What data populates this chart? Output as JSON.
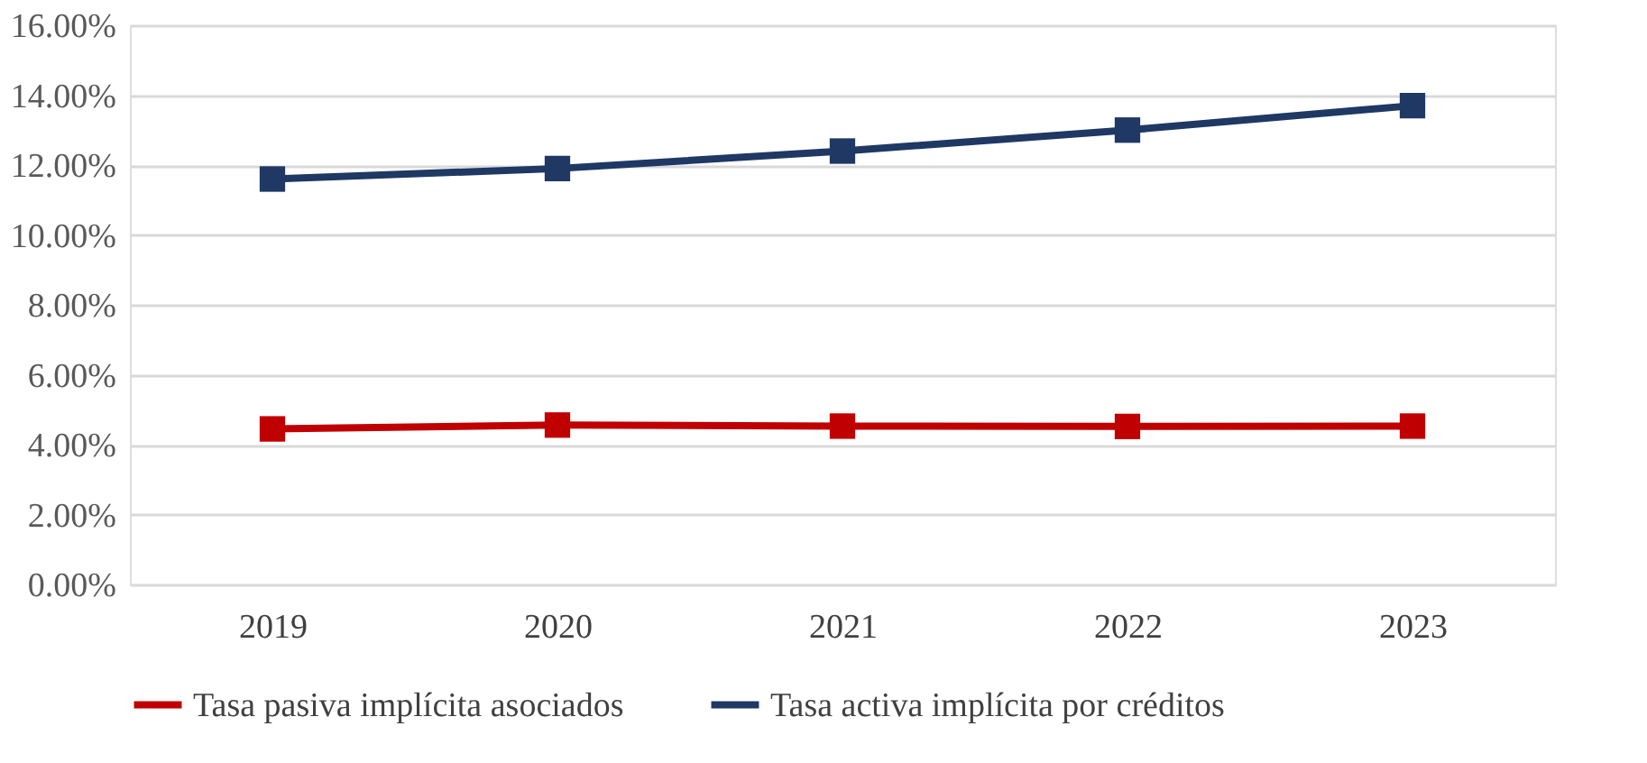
{
  "chart_data": {
    "type": "line",
    "categories": [
      "2019",
      "2020",
      "2021",
      "2022",
      "2023"
    ],
    "series": [
      {
        "name": "Tasa pasiva implícita asociados",
        "color": "#c00000",
        "values": [
          4.45,
          4.56,
          4.53,
          4.52,
          4.53
        ]
      },
      {
        "name": "Tasa activa implícita por créditos",
        "color": "#1f3864",
        "values": [
          11.6,
          11.9,
          12.4,
          13.0,
          13.7
        ]
      }
    ],
    "ylim": [
      0,
      16
    ],
    "yticks": [
      {
        "value": 0,
        "label": "0.00%"
      },
      {
        "value": 2,
        "label": "2.00%"
      },
      {
        "value": 4,
        "label": "4.00%"
      },
      {
        "value": 6,
        "label": "6.00%"
      },
      {
        "value": 8,
        "label": "8.00%"
      },
      {
        "value": 10,
        "label": "10.00%"
      },
      {
        "value": 12,
        "label": "12.00%"
      },
      {
        "value": 14,
        "label": "14.00%"
      },
      {
        "value": 16,
        "label": "16.00%"
      }
    ],
    "grid": "y",
    "legend": "bottom",
    "marker": "square",
    "line_style": "solid"
  }
}
